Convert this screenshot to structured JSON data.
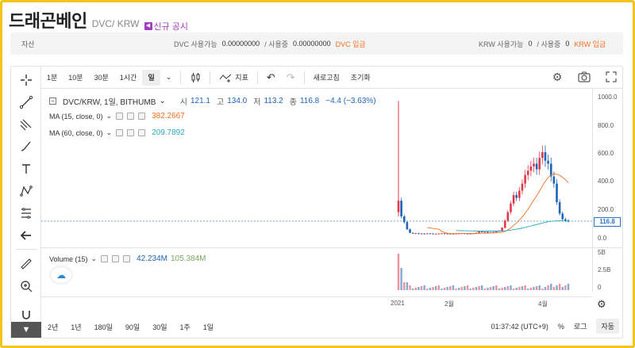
{
  "header": {
    "coin_name": "드래곤베인",
    "pair": "DVC/ KRW",
    "notice": "신규 공시",
    "notice_icon": "megaphone-icon"
  },
  "assets": {
    "label": "자산",
    "dvc_label": "DVC 사용가능",
    "dvc_available": "0.00000000",
    "dvc_sep": "/ 사용중",
    "dvc_in_use": "0.00000000",
    "dvc_deposit": "DVC 입금",
    "krw_label": "KRW 사용가능",
    "krw_available": "0",
    "krw_sep": "/ 사용중",
    "krw_in_use": "0",
    "krw_deposit": "KRW 입금"
  },
  "toolbar": {
    "intervals": [
      "1분",
      "10분",
      "30분",
      "1시간",
      "일"
    ],
    "selected_interval": "일",
    "indicator": "지표",
    "refresh": "새로고침",
    "reset": "초기화"
  },
  "legend": {
    "symbol": "DVC/KRW, 1일, BITHUMB",
    "open_label": "시",
    "open": "121.1",
    "high_label": "고",
    "high": "134.0",
    "low_label": "저",
    "low": "113.2",
    "close_label": "종",
    "close": "116.8",
    "change": "−4.4 (−3.63%)",
    "ma1_label": "MA (15, close, 0)",
    "ma1_value": "382.2667",
    "ma2_label": "MA (60, close, 0)",
    "ma2_value": "209.7892",
    "volume_label": "Volume (15)",
    "volume_value": "42.234M",
    "volume_ma": "105.384M"
  },
  "price_axis": [
    "1000.0",
    "800.0",
    "600.0",
    "400.0",
    "200.0",
    "0.0"
  ],
  "last_price": "116.8",
  "volume_axis": [
    "5B",
    "2.5B",
    "0"
  ],
  "time_axis": [
    "2021",
    "2월",
    "4월"
  ],
  "bottom": {
    "ranges": [
      "2년",
      "1년",
      "180일",
      "90일",
      "30일",
      "1주",
      "1일"
    ],
    "clock": "01:37:42 (UTC+9)",
    "percent": "%",
    "log": "로그",
    "auto": "자동"
  },
  "colors": {
    "up": "#e0394a",
    "down": "#1f64b7",
    "ma15": "#f37021",
    "ma60": "#2aa8bf",
    "accent": "#f37021"
  },
  "chart_data": {
    "type": "candlestick",
    "ylim": [
      0,
      1000
    ],
    "close_series": [
      260,
      150,
      110,
      60,
      35,
      30,
      32,
      28,
      30,
      29,
      31,
      30,
      28,
      29,
      30,
      31,
      29,
      30,
      28,
      29,
      30,
      31,
      32,
      30,
      29,
      30,
      31,
      35,
      45,
      40,
      42,
      38,
      36,
      40,
      45,
      50,
      70,
      120,
      180,
      240,
      300,
      280,
      330,
      380,
      440,
      470,
      500,
      520,
      480,
      560,
      600,
      540,
      520,
      430,
      380,
      250,
      170,
      130,
      121,
      116.8
    ]
  }
}
